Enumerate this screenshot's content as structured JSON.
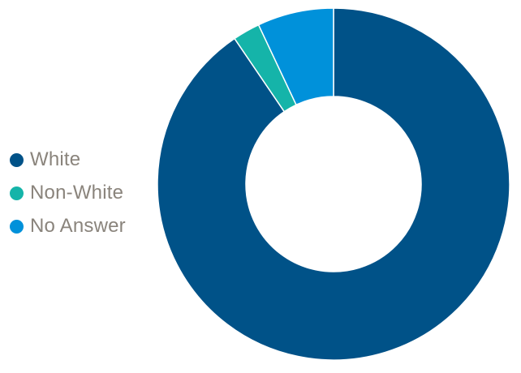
{
  "chart_data": {
    "type": "pie",
    "donut": true,
    "categories": [
      "White",
      "Non-White",
      "No Answer"
    ],
    "values": [
      90.5,
      2.5,
      7.0
    ],
    "colors": [
      "#005288",
      "#15b4a9",
      "#0091da"
    ],
    "legend_position": "left",
    "title": "",
    "start_angle": "top",
    "direction": "clockwise"
  }
}
